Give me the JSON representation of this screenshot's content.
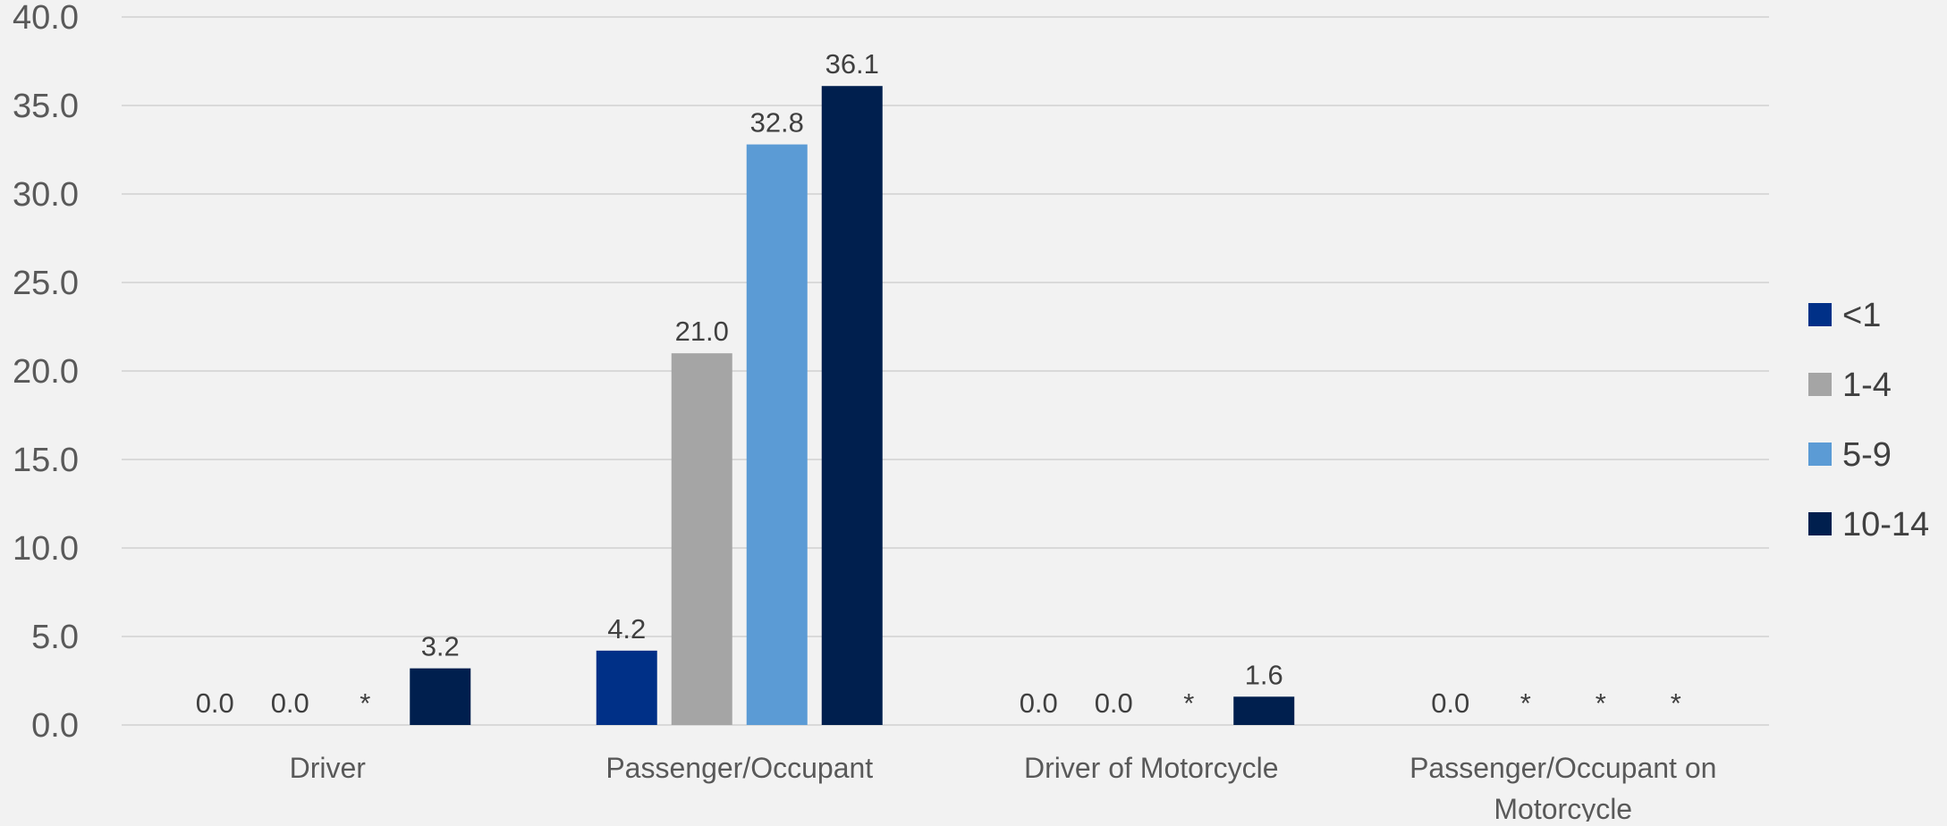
{
  "chart_data": {
    "type": "bar",
    "title": "",
    "xlabel": "",
    "ylabel": "",
    "ylim": [
      0,
      40
    ],
    "ytick_step": 5,
    "ytick_labels": [
      "0.0",
      "5.0",
      "10.0",
      "15.0",
      "20.0",
      "25.0",
      "30.0",
      "35.0",
      "40.0"
    ],
    "grid": true,
    "legend_position": "right",
    "categories": [
      [
        "Driver"
      ],
      [
        "Passenger/Occupant"
      ],
      [
        "Driver of Motorcycle"
      ],
      [
        "Passenger/Occupant on",
        "Motorcycle"
      ]
    ],
    "series": [
      {
        "name": "<1",
        "color": "#003087",
        "values": [
          0.0,
          4.2,
          0.0,
          0.0
        ],
        "labels": [
          "0.0",
          "4.2",
          "0.0",
          "0.0"
        ]
      },
      {
        "name": "1-4",
        "color": "#a5a5a5",
        "values": [
          0.0,
          21.0,
          0.0,
          null
        ],
        "labels": [
          "0.0",
          "21.0",
          "0.0",
          "*"
        ]
      },
      {
        "name": "5-9",
        "color": "#5b9bd5",
        "values": [
          null,
          32.8,
          null,
          null
        ],
        "labels": [
          "*",
          "32.8",
          "*",
          "*"
        ]
      },
      {
        "name": "10-14",
        "color": "#001f4e",
        "values": [
          3.2,
          36.1,
          1.6,
          null
        ],
        "labels": [
          "3.2",
          "36.1",
          "1.6",
          "*"
        ]
      }
    ]
  }
}
